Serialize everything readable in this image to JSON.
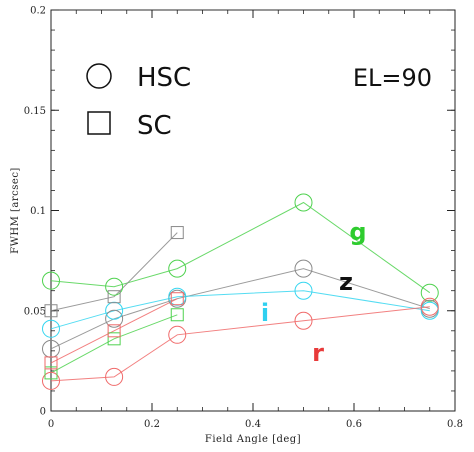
{
  "chart_data": {
    "type": "scatter",
    "xlabel": "Field Angle [deg]",
    "ylabel": "FWHM [arcsec]",
    "xlim": [
      0,
      0.8
    ],
    "ylim": [
      0,
      0.2
    ],
    "x_ticks": [
      "0",
      "0.2",
      "0.4",
      "0.6",
      "0.8"
    ],
    "y_ticks": [
      "0",
      "0.05",
      "0.1",
      "0.15",
      "0.2"
    ],
    "grid": false,
    "reference_line_y": 0.2,
    "annotation": "EL=90",
    "legend": {
      "placement": "top-left",
      "entries": [
        {
          "marker": "circle",
          "label": "HSC"
        },
        {
          "marker": "square",
          "label": "SC"
        }
      ]
    },
    "series": [
      {
        "name": "g",
        "color": "#4fd24f",
        "instrument": "HSC",
        "marker": "circle",
        "x": [
          0,
          0.125,
          0.25,
          0.5,
          0.75
        ],
        "y": [
          0.065,
          0.062,
          0.071,
          0.104,
          0.059
        ]
      },
      {
        "name": "z",
        "color": "#8a8a8a",
        "instrument": "HSC",
        "marker": "circle",
        "x": [
          0,
          0.125,
          0.25,
          0.5,
          0.75
        ],
        "y": [
          0.031,
          0.046,
          0.056,
          0.071,
          0.051
        ]
      },
      {
        "name": "i",
        "color": "#36d6f0",
        "instrument": "HSC",
        "marker": "circle",
        "x": [
          0,
          0.125,
          0.25,
          0.5,
          0.75
        ],
        "y": [
          0.041,
          0.05,
          0.057,
          0.06,
          0.05
        ]
      },
      {
        "name": "r",
        "color": "#f06a6a",
        "instrument": "HSC",
        "marker": "circle",
        "x": [
          0,
          0.125,
          0.25,
          0.5,
          0.75
        ],
        "y": [
          0.015,
          0.017,
          0.038,
          0.045,
          0.052
        ]
      },
      {
        "name": "z",
        "color": "#8a8a8a",
        "instrument": "SC",
        "marker": "square",
        "x": [
          0,
          0.125,
          0.25
        ],
        "y": [
          0.05,
          0.057,
          0.089
        ]
      },
      {
        "name": "g",
        "color": "#4fd24f",
        "instrument": "SC",
        "marker": "square",
        "x": [
          0,
          0.125,
          0.25
        ],
        "y": [
          0.019,
          0.036,
          0.048
        ]
      },
      {
        "name": "r",
        "color": "#f06a6a",
        "instrument": "SC",
        "marker": "square",
        "x": [
          0,
          0.125,
          0.25
        ],
        "y": [
          0.024,
          0.04,
          0.056
        ]
      }
    ],
    "series_labels": [
      {
        "text": "g",
        "color": "#2ecc2e"
      },
      {
        "text": "z",
        "color": "#111111"
      },
      {
        "text": "i",
        "color": "#2fd0f0"
      },
      {
        "text": "r",
        "color": "#e83a3a"
      }
    ]
  }
}
